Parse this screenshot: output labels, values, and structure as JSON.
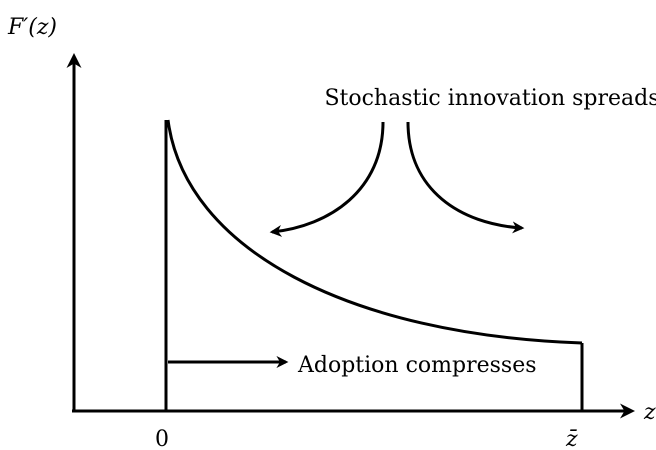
{
  "axes": {
    "y_label": "F′(z)",
    "x_label": "z",
    "x_ticks": [
      "0",
      "z̄"
    ]
  },
  "annotations": {
    "top": "Stochastic innovation spreads",
    "bottom": "Adoption compresses"
  }
}
